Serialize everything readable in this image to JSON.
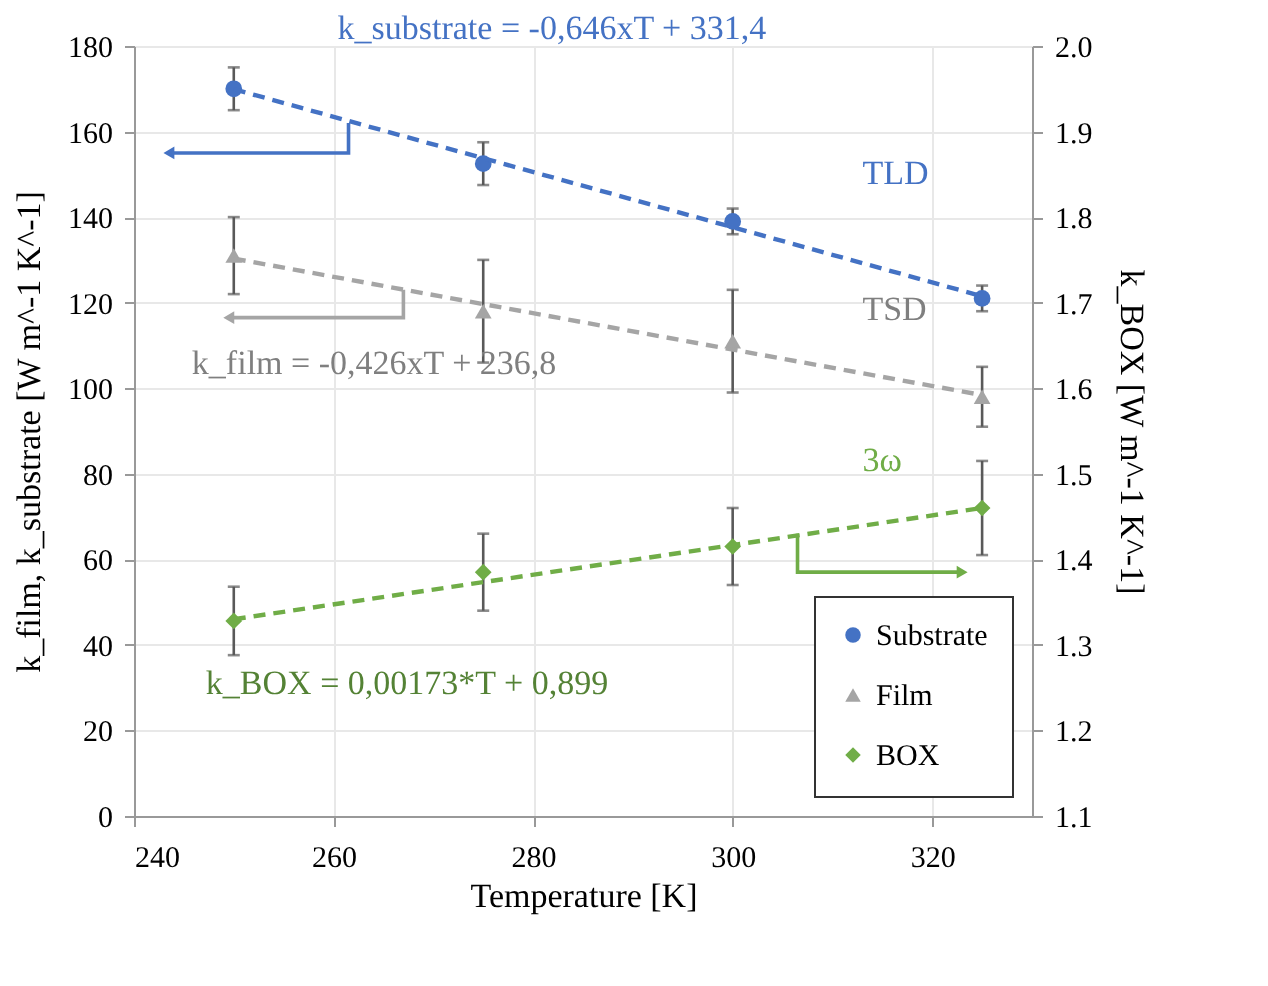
{
  "chart_data": {
    "type": "scatter",
    "xlabel": "Temperature [K]",
    "ylabel": "k_film, k_substrate [W m^-1 K^-1]",
    "y2label": "k_BOX [W m^-1 K^-1]",
    "xlim": [
      240,
      330
    ],
    "xticks": [
      240,
      260,
      280,
      300,
      320
    ],
    "ylim": [
      0,
      180
    ],
    "yticks": [
      0,
      20,
      40,
      60,
      80,
      100,
      120,
      140,
      160,
      180
    ],
    "y2lim": [
      1.1,
      2.0
    ],
    "y2ticks": [
      1.1,
      1.2,
      1.3,
      1.4,
      1.5,
      1.6,
      1.7,
      1.8,
      1.9,
      {
        "value": 2,
        "label": "2.0"
      }
    ],
    "grid": true,
    "legend": "bottom right",
    "series": [
      {
        "name": "Substrate",
        "marker": "circle",
        "color": "#4472c4",
        "x": [
          250,
          275,
          300,
          325
        ],
        "values": [
          170,
          152.5,
          139,
          121
        ],
        "errors": [
          5,
          5,
          3,
          3
        ]
      },
      {
        "name": "Film",
        "marker": "triangle",
        "color": "#a5a5a5",
        "x": [
          250,
          275,
          300,
          325
        ],
        "values": [
          131,
          118,
          111,
          98
        ],
        "errors": [
          9,
          12,
          12,
          7
        ]
      },
      {
        "name": "BOX",
        "marker": "diamond",
        "color": "#70ad47",
        "axis": "y2",
        "x": [
          250,
          275,
          300,
          325
        ],
        "values": [
          1.328,
          1.385,
          1.415,
          1.46
        ],
        "errors": [
          0.04,
          0.045,
          0.045,
          0.055
        ]
      },
      {
        "type": "line",
        "line_style": "dashed",
        "color": "#4472c4",
        "x": [
          250,
          325
        ],
        "values": [
          169.9,
          121.5
        ]
      },
      {
        "type": "line",
        "line_style": "dashed",
        "color": "#a5a5a5",
        "x": [
          250,
          325
        ],
        "values": [
          130.3,
          98.4
        ]
      },
      {
        "type": "line",
        "line_style": "dashed",
        "color": "#70ad47",
        "axis": "y2",
        "x": [
          250,
          325
        ],
        "values": [
          1.33,
          1.46
        ]
      }
    ],
    "annotations": [
      "k_substrate = -0,646xT + 331,4",
      "TLD",
      "k_film = -0,426xT + 236,8",
      "TSD",
      "k_BOX = 0,00173*T + 0,899",
      "3ω"
    ]
  }
}
